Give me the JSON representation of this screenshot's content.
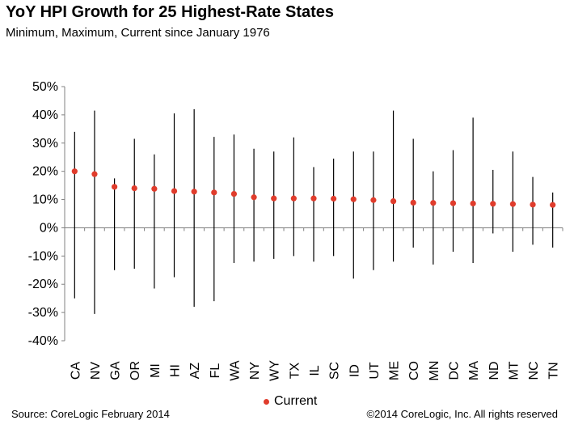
{
  "chart_data": {
    "type": "scatter",
    "title": "YoY HPI Growth for 25 Highest-Rate States",
    "subtitle": "Minimum, Maximum, Current since January 1976",
    "categories": [
      "CA",
      "NV",
      "GA",
      "OR",
      "MI",
      "HI",
      "AZ",
      "FL",
      "WA",
      "NY",
      "WY",
      "TX",
      "IL",
      "SC",
      "ID",
      "UT",
      "ME",
      "CO",
      "MN",
      "DC",
      "MA",
      "ND",
      "MT",
      "NC",
      "TN"
    ],
    "series": [
      {
        "name": "Current",
        "values": [
          20,
          19,
          14.5,
          14,
          13.8,
          13,
          12.8,
          12.5,
          12,
          10.8,
          10.4,
          10.4,
          10.4,
          10.3,
          10.1,
          9.8,
          9.4,
          8.9,
          8.8,
          8.7,
          8.6,
          8.5,
          8.4,
          8.2,
          8.1
        ]
      }
    ],
    "min": [
      -25,
      -30.5,
      -15,
      -14.5,
      -21.5,
      -17.5,
      -28,
      -26,
      -12.5,
      -12,
      -11,
      -10,
      -12,
      -10,
      -18,
      -15,
      -12,
      -7,
      -13,
      -8.5,
      -12.5,
      -2,
      -8.5,
      -6,
      -7
    ],
    "max": [
      34,
      41.5,
      17.5,
      31.5,
      26,
      40.5,
      42,
      32.2,
      33,
      28,
      27,
      32,
      21.5,
      24.5,
      27,
      27,
      41.5,
      31.5,
      20,
      27.5,
      39,
      20.5,
      27,
      18,
      12.5
    ],
    "ylim": [
      -40,
      50
    ],
    "yticks": [
      "-40%",
      "-30%",
      "-20%",
      "-10%",
      "0%",
      "10%",
      "20%",
      "30%",
      "40%",
      "50%"
    ],
    "grid": false,
    "legend_position": "bottom",
    "colors": {
      "current": "#e03c2c",
      "range": "#000000",
      "axis": "#808080"
    }
  },
  "footer": {
    "source": "Source: CoreLogic  February 2014",
    "copyright": "©2014 CoreLogic, Inc. All rights reserved"
  }
}
